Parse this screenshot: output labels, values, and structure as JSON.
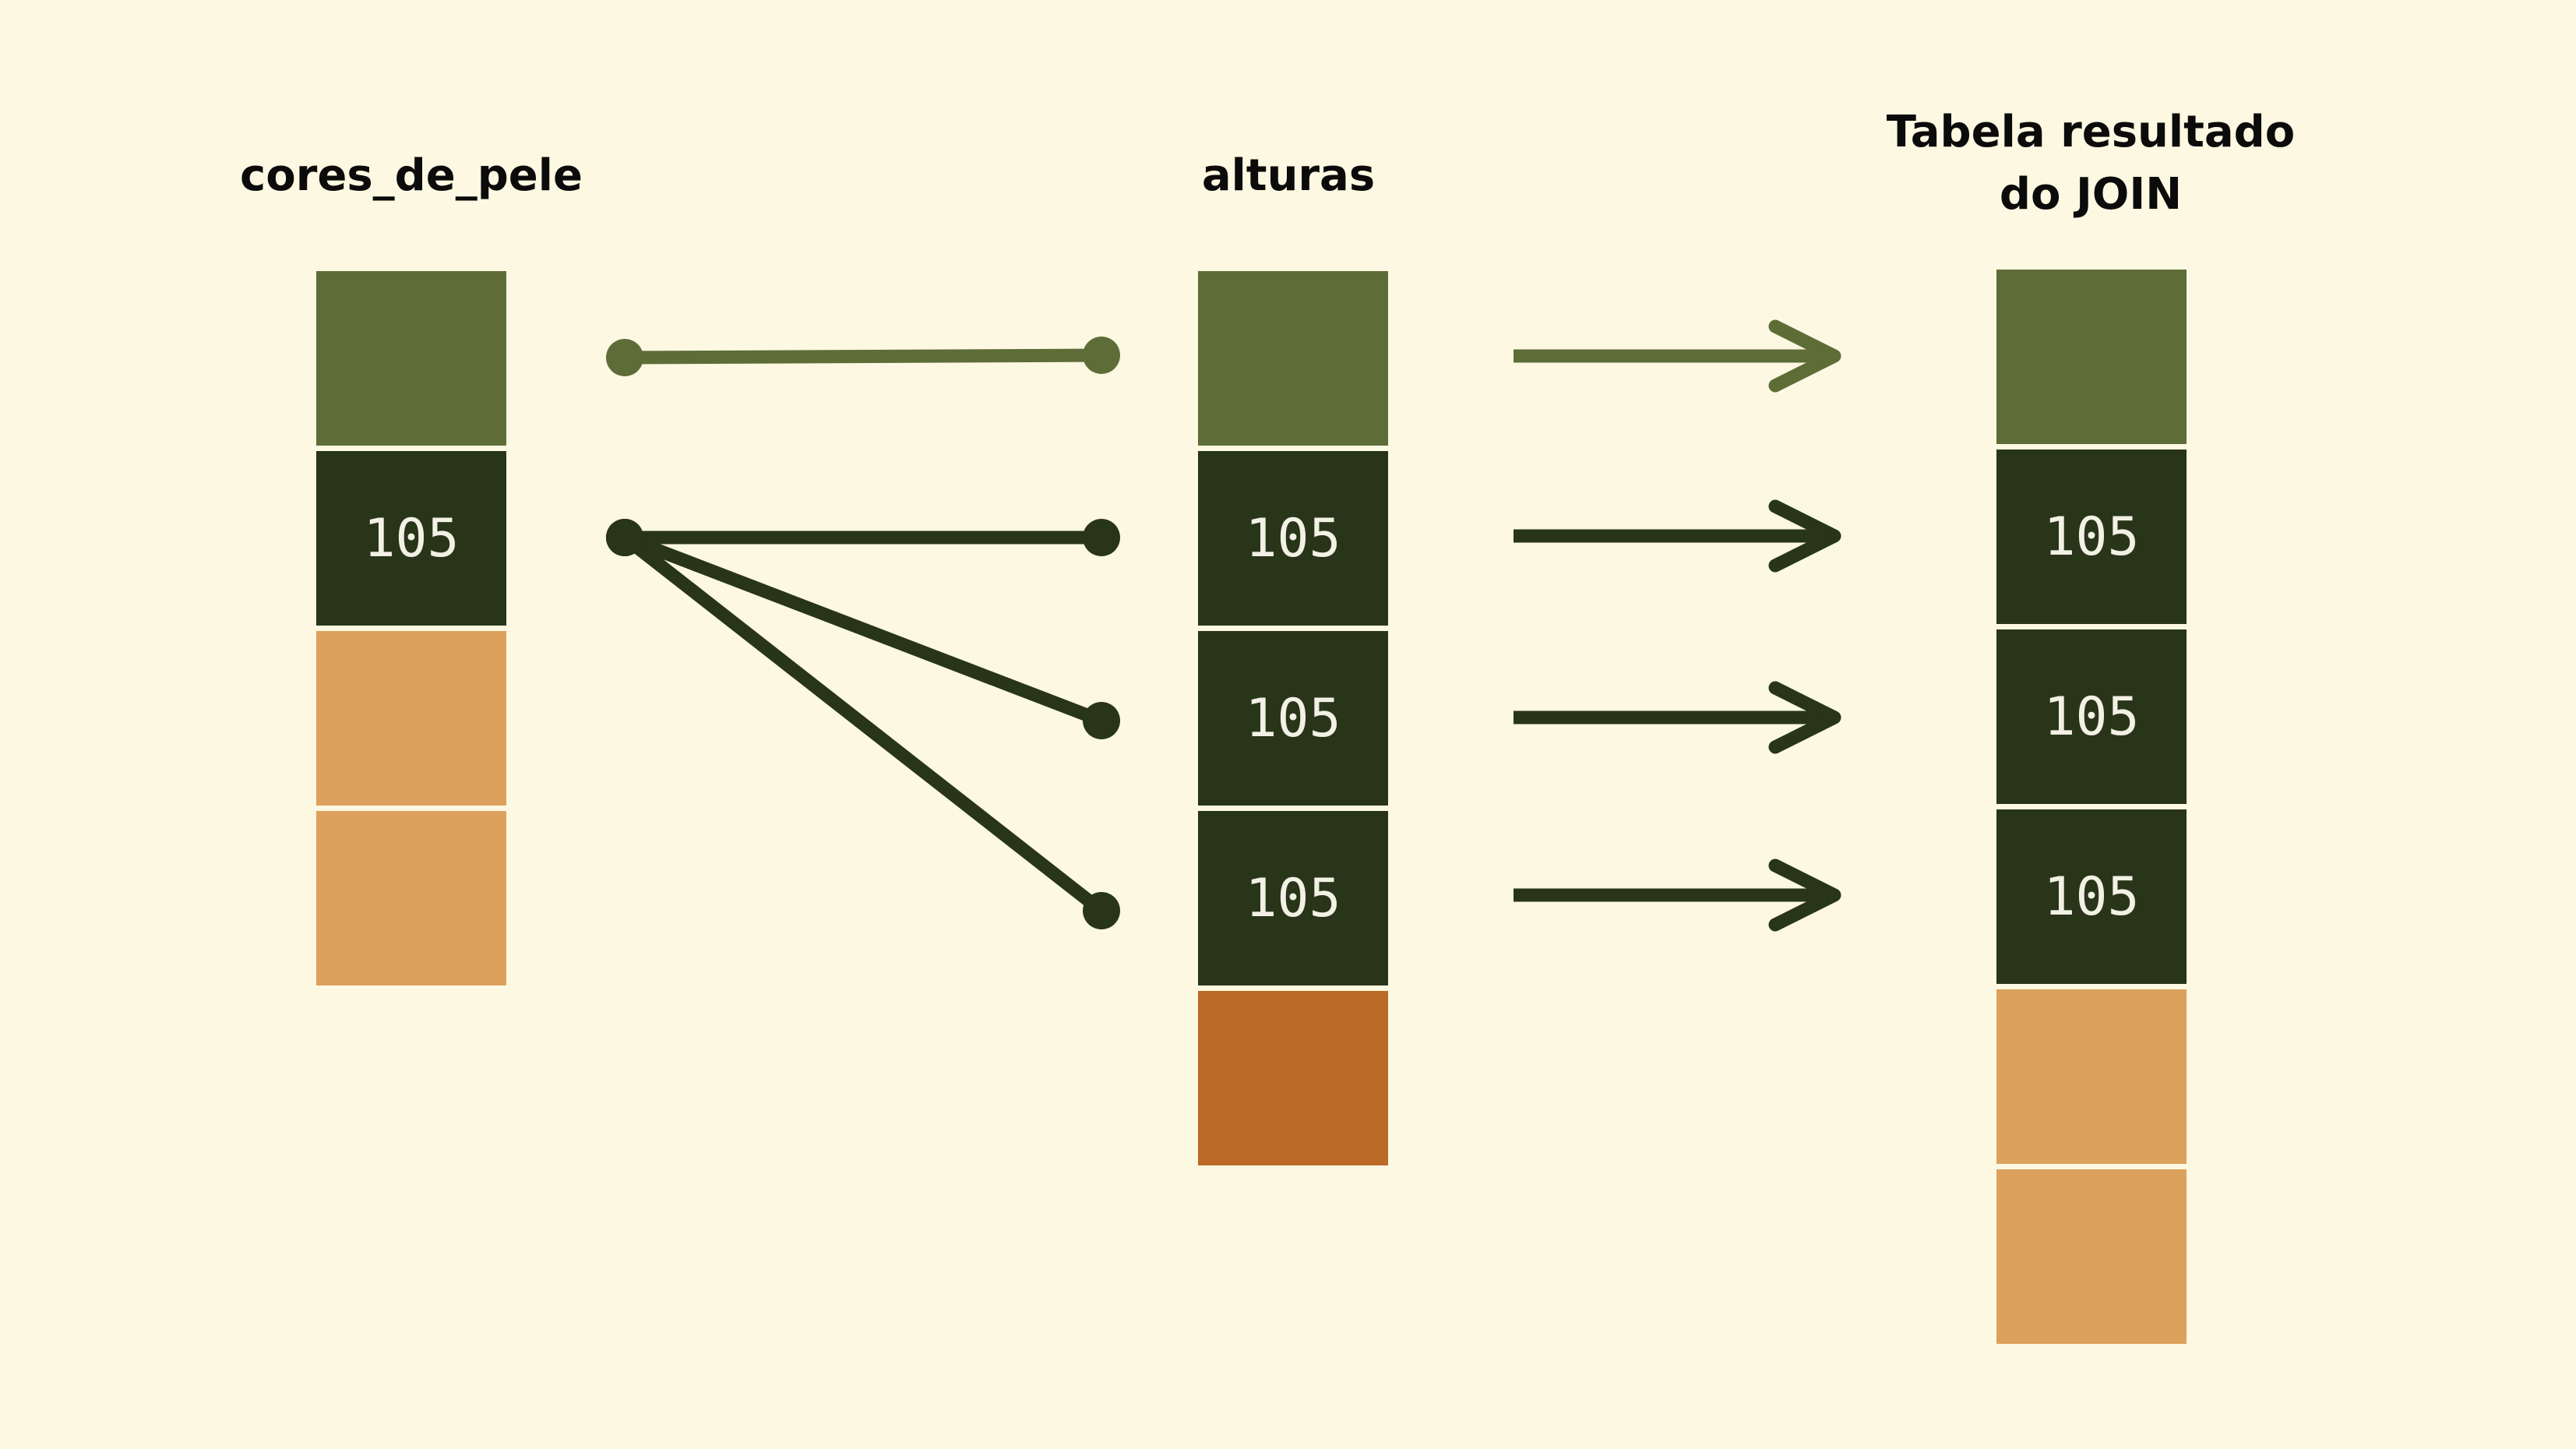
{
  "titles": {
    "left": "cores_de_pele",
    "middle": "alturas",
    "right_line1": "Tabela resultado",
    "right_line2": "do JOIN"
  },
  "colors": {
    "background": "#fdf8e1",
    "olive": "#5e6d38",
    "dark_green": "#283519",
    "tan": "#dca15d",
    "rust": "#bc6b26"
  },
  "tables": {
    "left": [
      {
        "color": "olive",
        "label": ""
      },
      {
        "color": "dark_green",
        "label": "105"
      },
      {
        "color": "tan",
        "label": ""
      },
      {
        "color": "tan",
        "label": ""
      }
    ],
    "middle": [
      {
        "color": "olive",
        "label": ""
      },
      {
        "color": "dark_green",
        "label": "105"
      },
      {
        "color": "dark_green",
        "label": "105"
      },
      {
        "color": "dark_green",
        "label": "105"
      },
      {
        "color": "rust",
        "label": ""
      }
    ],
    "right": [
      {
        "color": "olive",
        "label": ""
      },
      {
        "color": "dark_green",
        "label": "105"
      },
      {
        "color": "dark_green",
        "label": "105"
      },
      {
        "color": "dark_green",
        "label": "105"
      },
      {
        "color": "tan",
        "label": ""
      },
      {
        "color": "tan",
        "label": ""
      }
    ]
  },
  "join_links": [
    {
      "from_row": 0,
      "to_row": 0,
      "color": "olive"
    },
    {
      "from_row": 1,
      "to_row": 1,
      "color": "dark_green"
    },
    {
      "from_row": 1,
      "to_row": 2,
      "color": "dark_green"
    },
    {
      "from_row": 1,
      "to_row": 3,
      "color": "dark_green"
    }
  ],
  "result_arrows": [
    {
      "row": 0,
      "color": "olive"
    },
    {
      "row": 1,
      "color": "dark_green"
    },
    {
      "row": 2,
      "color": "dark_green"
    },
    {
      "row": 3,
      "color": "dark_green"
    }
  ]
}
